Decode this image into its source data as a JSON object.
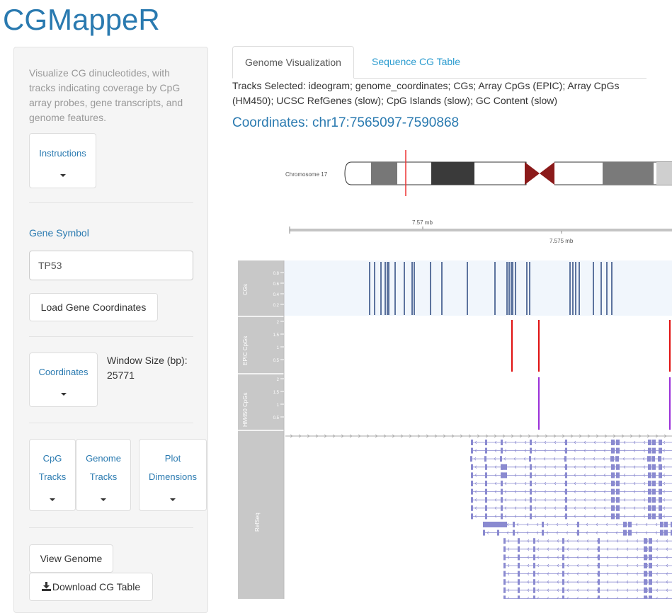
{
  "app": {
    "title": "CGMappeR"
  },
  "sidebar": {
    "description": "Visualize CG dinucleotides, with tracks indicating coverage by CpG array probes, gene transcripts, and genome features.",
    "instructions_label": "Instructions",
    "gene_symbol_label": "Gene Symbol",
    "gene_symbol_value": "TP53",
    "load_button": "Load Gene Coordinates",
    "coordinates_label": "Coordinates",
    "window_size_label": "Window Size (bp):",
    "window_size_value": "25771",
    "cpg_tracks_line1": "CpG",
    "cpg_tracks_line2": "Tracks",
    "genome_tracks_line1": "Genome",
    "genome_tracks_line2": "Tracks",
    "plot_dim_line1": "Plot",
    "plot_dim_line2": "Dimensions",
    "view_genome_button": "View Genome",
    "download_button": "Download CG Table"
  },
  "main": {
    "tabs": [
      {
        "label": "Genome Visualization",
        "active": true
      },
      {
        "label": "Sequence CG Table",
        "active": false
      }
    ],
    "tracks_selected": "Tracks Selected: ideogram; genome_coordinates; CGs; Array CpGs (EPIC); Array CpGs (HM450); UCSC RefGenes (slow); CpG Islands (slow); GC Content (slow)",
    "coordinates_heading": "Coordinates: chr17:7565097-7590868"
  },
  "plot": {
    "chromosome_label": "Chromosome 17",
    "axis_tick_1": "7.57 mb",
    "axis_tick_2": "7.575 mb",
    "track_cgs": "CGs",
    "track_epic": "EPIC CpGs",
    "track_hm450": "HM450 CpGs",
    "track_refseq": "RefSeq",
    "cgs_ticks": [
      "0.8",
      "0.6",
      "0.4",
      "0.2"
    ],
    "epic_ticks": [
      "2",
      "1.5",
      "1",
      "0.5"
    ],
    "hm450_ticks": [
      "2",
      "1.5",
      "1",
      "0.5"
    ],
    "cg_positions": [
      121,
      128,
      137,
      143,
      146,
      148,
      157,
      170,
      181,
      184,
      207,
      223,
      259,
      298,
      315,
      318,
      321,
      323,
      327,
      343,
      347,
      404,
      408,
      412,
      417,
      437,
      448,
      456,
      463,
      554,
      557,
      560,
      568,
      576,
      584,
      601
    ],
    "epic_positions": [
      322,
      360,
      545,
      595,
      600,
      607,
      614
    ],
    "hm450_positions": [
      360,
      545,
      608
    ],
    "colors": {
      "accent": "#2a7ab0",
      "cg_line": "#0b2d6b",
      "epic": "#e01010",
      "hm450": "#9a30d8",
      "refseq": "#8a8ad0",
      "panel_grey": "#c8c8c8",
      "cg_bg": "#f1f6fc",
      "centromere": "#8b1a1a"
    }
  }
}
